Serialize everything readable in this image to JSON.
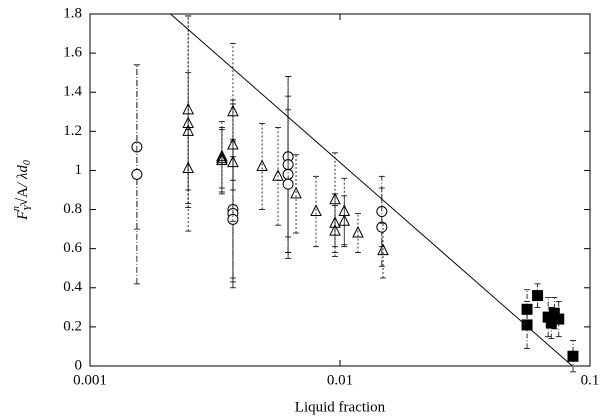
{
  "chart_data": {
    "type": "scatter",
    "xlabel": "Liquid fraction",
    "ylabel": [
      "F",
      "Y",
      "n",
      "√A",
      "/ λd",
      "0"
    ],
    "xscale": "log",
    "xlim": [
      0.001,
      0.1
    ],
    "xticks": [
      0.001,
      0.01,
      0.1
    ],
    "ylim": [
      0,
      1.8
    ],
    "yticks": [
      0,
      0.2,
      0.4,
      0.6,
      0.8,
      1,
      1.2,
      1.4,
      1.6,
      1.8
    ],
    "series": [
      {
        "marker": "circle",
        "color": "#000000",
        "x": [
          0.00154,
          0.00154,
          0.00373,
          0.00373,
          0.00373,
          0.0062,
          0.0062,
          0.0062,
          0.0062,
          0.0147,
          0.0147
        ],
        "values": [
          1.12,
          0.98,
          0.8,
          0.78,
          0.75,
          1.07,
          1.03,
          0.98,
          0.93,
          0.79,
          0.71
        ],
        "errors": [
          0.42,
          0.56,
          0.35,
          0.38,
          0.32,
          0.41,
          0.45,
          0.4,
          0.38,
          0.18,
          0.2
        ]
      },
      {
        "marker": "triangle",
        "color": "#000000",
        "x": [
          0.00247,
          0.00247,
          0.00247,
          0.00247,
          0.00337,
          0.00337,
          0.00337,
          0.00373,
          0.00373,
          0.00373,
          0.00488,
          0.00565,
          0.00667,
          0.00802,
          0.00955,
          0.00955,
          0.00955,
          0.0104,
          0.0104,
          0.0118,
          0.01486
        ],
        "values": [
          1.31,
          1.24,
          1.2,
          1.01,
          1.07,
          1.06,
          1.05,
          1.3,
          1.13,
          1.04,
          1.02,
          0.97,
          0.88,
          0.79,
          0.85,
          0.73,
          0.69,
          0.79,
          0.74,
          0.68,
          0.59
        ],
        "errors": [
          0.48,
          0.55,
          0.3,
          0.2,
          0.18,
          0.15,
          0.17,
          0.35,
          0.23,
          0.3,
          0.22,
          0.25,
          0.2,
          0.18,
          0.24,
          0.15,
          0.13,
          0.17,
          0.13,
          0.1,
          0.14
        ]
      },
      {
        "marker": "filled-square",
        "color": "#000000",
        "x": [
          0.056,
          0.056,
          0.0617,
          0.068,
          0.07,
          0.072,
          0.075,
          0.0855
        ],
        "values": [
          0.29,
          0.21,
          0.36,
          0.25,
          0.22,
          0.27,
          0.24,
          0.05
        ],
        "errors": [
          0.1,
          0.12,
          0.06,
          0.1,
          0.08,
          0.08,
          0.09,
          0.08
        ]
      },
      {
        "marker": "line",
        "color": "#000000",
        "x": [
          0.0021,
          0.085
        ],
        "values": [
          1.8,
          0
        ]
      }
    ]
  }
}
